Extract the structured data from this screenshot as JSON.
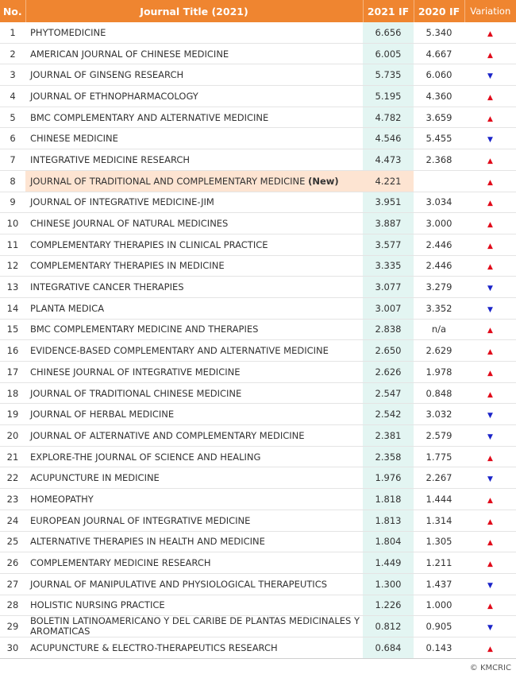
{
  "header": {
    "no": "No.",
    "title": "Journal Title (2021)",
    "if2021": "2021 IF",
    "if2020": "2020 IF",
    "variation": "Variation"
  },
  "colors": {
    "header_bg": "#ef8530",
    "if2021_bg": "#e3f5f2",
    "highlight_bg": "#fde4d2",
    "up": "#e10a1a",
    "down": "#1a23c9"
  },
  "rows": [
    {
      "no": "1",
      "title": "PHYTOMEDICINE",
      "if2021": "6.656",
      "if2020": "5.340",
      "dir": "up"
    },
    {
      "no": "2",
      "title": "AMERICAN JOURNAL OF CHINESE MEDICINE",
      "if2021": "6.005",
      "if2020": "4.667",
      "dir": "up"
    },
    {
      "no": "3",
      "title": "JOURNAL OF GINSENG RESEARCH",
      "if2021": "5.735",
      "if2020": "6.060",
      "dir": "down"
    },
    {
      "no": "4",
      "title": "JOURNAL OF ETHNOPHARMACOLOGY",
      "if2021": "5.195",
      "if2020": "4.360",
      "dir": "up"
    },
    {
      "no": "5",
      "title": "BMC COMPLEMENTARY AND ALTERNATIVE MEDICINE",
      "if2021": "4.782",
      "if2020": "3.659",
      "dir": "up"
    },
    {
      "no": "6",
      "title": "CHINESE MEDICINE",
      "if2021": "4.546",
      "if2020": "5.455",
      "dir": "down"
    },
    {
      "no": "7",
      "title": "INTEGRATIVE MEDICINE RESEARCH",
      "if2021": "4.473",
      "if2020": "2.368",
      "dir": "up"
    },
    {
      "no": "8",
      "title": "JOURNAL OF TRADITIONAL AND COMPLEMENTARY MEDICINE",
      "tag": "(New)",
      "if2021": "4.221",
      "if2020": "",
      "dir": "up",
      "highlight": true
    },
    {
      "no": "9",
      "title": "JOURNAL OF INTEGRATIVE MEDICINE-JIM",
      "if2021": "3.951",
      "if2020": "3.034",
      "dir": "up"
    },
    {
      "no": "10",
      "title": "CHINESE JOURNAL OF NATURAL MEDICINES",
      "if2021": "3.887",
      "if2020": "3.000",
      "dir": "up"
    },
    {
      "no": "11",
      "title": "COMPLEMENTARY THERAPIES IN CLINICAL PRACTICE",
      "if2021": "3.577",
      "if2020": "2.446",
      "dir": "up"
    },
    {
      "no": "12",
      "title": "COMPLEMENTARY THERAPIES IN MEDICINE",
      "if2021": "3.335",
      "if2020": "2.446",
      "dir": "up"
    },
    {
      "no": "13",
      "title": "INTEGRATIVE CANCER THERAPIES",
      "if2021": "3.077",
      "if2020": "3.279",
      "dir": "down"
    },
    {
      "no": "14",
      "title": "PLANTA MEDICA",
      "if2021": "3.007",
      "if2020": "3.352",
      "dir": "down"
    },
    {
      "no": "15",
      "title": "BMC COMPLEMENTARY MEDICINE AND THERAPIES",
      "if2021": "2.838",
      "if2020": "n/a",
      "dir": "up"
    },
    {
      "no": "16",
      "title": "EVIDENCE-BASED COMPLEMENTARY AND ALTERNATIVE MEDICINE",
      "if2021": "2.650",
      "if2020": "2.629",
      "dir": "up"
    },
    {
      "no": "17",
      "title": "CHINESE JOURNAL OF INTEGRATIVE MEDICINE",
      "if2021": "2.626",
      "if2020": "1.978",
      "dir": "up"
    },
    {
      "no": "18",
      "title": "JOURNAL OF TRADITIONAL CHINESE MEDICINE",
      "if2021": "2.547",
      "if2020": "0.848",
      "dir": "up"
    },
    {
      "no": "19",
      "title": "JOURNAL OF HERBAL MEDICINE",
      "if2021": "2.542",
      "if2020": "3.032",
      "dir": "down"
    },
    {
      "no": "20",
      "title": "JOURNAL OF ALTERNATIVE AND COMPLEMENTARY MEDICINE",
      "if2021": "2.381",
      "if2020": "2.579",
      "dir": "down"
    },
    {
      "no": "21",
      "title": "EXPLORE-THE JOURNAL OF SCIENCE AND HEALING",
      "if2021": "2.358",
      "if2020": "1.775",
      "dir": "up"
    },
    {
      "no": "22",
      "title": "ACUPUNCTURE IN MEDICINE",
      "if2021": "1.976",
      "if2020": "2.267",
      "dir": "down"
    },
    {
      "no": "23",
      "title": "HOMEOPATHY",
      "if2021": "1.818",
      "if2020": "1.444",
      "dir": "up"
    },
    {
      "no": "24",
      "title": "EUROPEAN JOURNAL OF INTEGRATIVE MEDICINE",
      "if2021": "1.813",
      "if2020": "1.314",
      "dir": "up"
    },
    {
      "no": "25",
      "title": "ALTERNATIVE THERAPIES IN HEALTH AND MEDICINE",
      "if2021": "1.804",
      "if2020": "1.305",
      "dir": "up"
    },
    {
      "no": "26",
      "title": "COMPLEMENTARY MEDICINE RESEARCH",
      "if2021": "1.449",
      "if2020": "1.211",
      "dir": "up"
    },
    {
      "no": "27",
      "title": "JOURNAL OF MANIPULATIVE AND PHYSIOLOGICAL THERAPEUTICS",
      "if2021": "1.300",
      "if2020": "1.437",
      "dir": "down"
    },
    {
      "no": "28",
      "title": "HOLISTIC NURSING PRACTICE",
      "if2021": "1.226",
      "if2020": "1.000",
      "dir": "up"
    },
    {
      "no": "29",
      "title": "BOLETIN LATINOAMERICANO Y DEL CARIBE DE PLANTAS MEDICINALES Y AROMATICAS",
      "if2021": "0.812",
      "if2020": "0.905",
      "dir": "down",
      "wrap": true
    },
    {
      "no": "30",
      "title": "ACUPUNCTURE & ELECTRO-THERAPEUTICS RESEARCH",
      "if2021": "0.684",
      "if2020": "0.143",
      "dir": "up"
    }
  ],
  "footer": "© KMCRIC",
  "chart_data": {
    "type": "table",
    "columns": [
      "No.",
      "Journal Title (2021)",
      "2021 IF",
      "2020 IF",
      "Variation"
    ]
  }
}
